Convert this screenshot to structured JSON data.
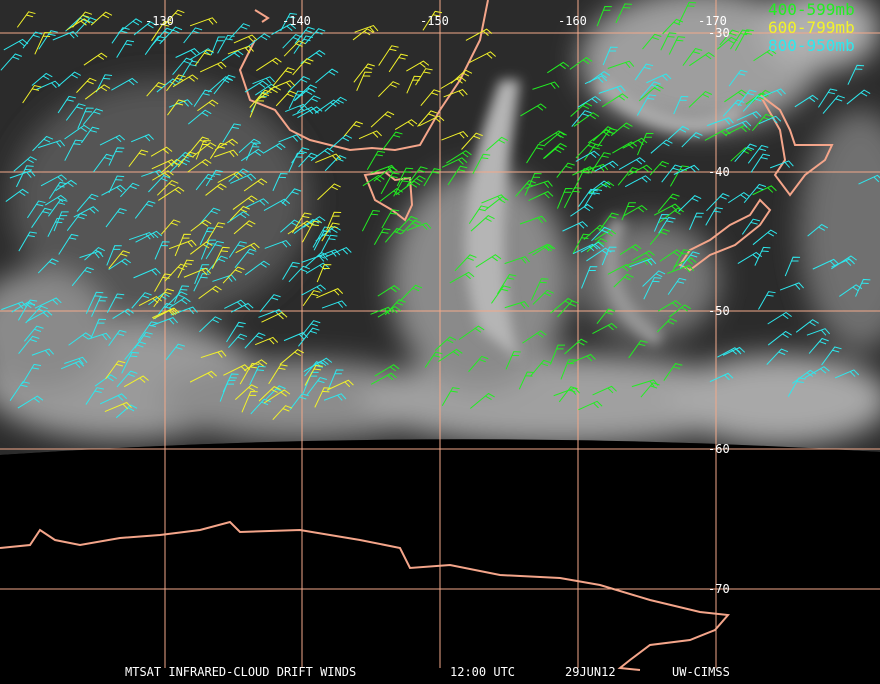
{
  "map": {
    "longitude_labels": [
      "-130",
      "-140",
      "-150",
      "-160",
      "-170"
    ],
    "latitude_labels": [
      "-30",
      "-40",
      "-50",
      "-60",
      "-70"
    ],
    "legend": [
      "400-599mb",
      "600-799mb",
      "800-950mb"
    ],
    "footer": {
      "product": "MTSAT INFRARED-CLOUD DRIFT WINDS",
      "time": "12:00 UTC",
      "date": "29JUN12",
      "source": "UW-CIMSS"
    }
  }
}
